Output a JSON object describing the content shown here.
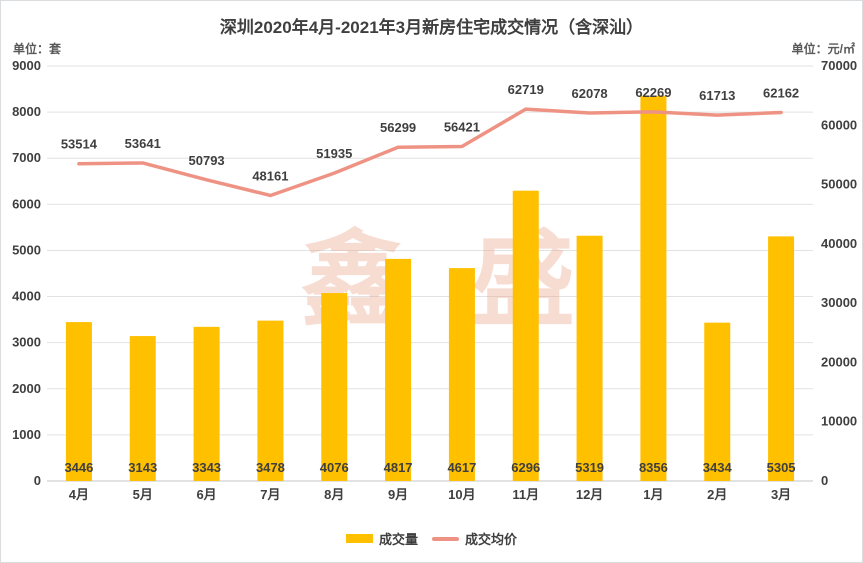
{
  "title": "深圳2020年4月-2021年3月新房住宅成交情况（含深汕）",
  "legend": {
    "bar_label": "成交量",
    "line_label": "成交均价"
  },
  "watermark": [
    "鑫",
    "盛"
  ],
  "colors": {
    "bar": "#FFC000",
    "line": "#EE9384",
    "text": "#3F3F3F",
    "unit_text": "#595959",
    "gridline": "#E2E2E2",
    "axis_line": "#C6C6C6"
  },
  "chart_data": {
    "type": "bar",
    "title": "深圳2020年4月-2021年3月新房住宅成交情况（含深汕）",
    "categories": [
      "4月",
      "5月",
      "6月",
      "7月",
      "8月",
      "9月",
      "10月",
      "11月",
      "12月",
      "1月",
      "2月",
      "3月"
    ],
    "series": [
      {
        "name": "成交量",
        "kind": "bar",
        "axis": "left",
        "color": "#FFC000",
        "values": [
          3446,
          3143,
          3343,
          3478,
          4076,
          4817,
          4617,
          6296,
          5319,
          8356,
          3434,
          5305
        ]
      },
      {
        "name": "成交均价",
        "kind": "line",
        "axis": "right",
        "color": "#EE9384",
        "values": [
          53514,
          53641,
          50793,
          48161,
          51935,
          56299,
          56421,
          62719,
          62078,
          62269,
          61713,
          62162
        ]
      }
    ],
    "left_axis": {
      "label": "单位：套",
      "min": 0,
      "max": 9000,
      "step": 1000,
      "ticks": [
        0,
        1000,
        2000,
        3000,
        4000,
        5000,
        6000,
        7000,
        8000,
        9000
      ]
    },
    "right_axis": {
      "label": "单位：元/㎡",
      "min": 0,
      "max": 70000,
      "step": 10000,
      "ticks": [
        0,
        10000,
        20000,
        30000,
        40000,
        50000,
        60000,
        70000
      ]
    },
    "grid": true,
    "legend_position": "bottom",
    "data_labels": true
  }
}
